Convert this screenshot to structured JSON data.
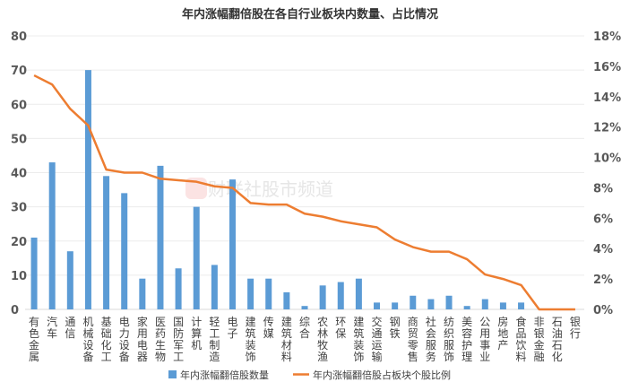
{
  "chart_data": {
    "type": "bar+line",
    "title": "年内涨幅翻倍股在各自行业板块内数量、占比情况",
    "categories": [
      "有色金属",
      "汽车",
      "通信",
      "机械设备",
      "基础化工",
      "电力设备",
      "家用电器",
      "医药生物",
      "国防军工",
      "计算机",
      "轻工制造",
      "电子",
      "建筑装饰",
      "传媒",
      "建筑材料",
      "综合",
      "农林牧渔",
      "环保",
      "建筑装饰",
      "交通运输",
      "钢铁",
      "商贸零售",
      "社会服务",
      "纺织服饰",
      "美容护理",
      "公用事业",
      "房地产",
      "食品饮料",
      "非银金融",
      "石油石化",
      "银行"
    ],
    "series": [
      {
        "name": "年内涨幅翻倍股数量",
        "type": "bar",
        "axis": "left",
        "color": "#5B9BD5",
        "values": [
          21,
          43,
          17,
          70,
          39,
          34,
          9,
          42,
          12,
          30,
          13,
          38,
          9,
          9,
          5,
          1,
          7,
          8,
          9,
          2,
          2,
          4,
          3,
          4,
          1,
          3,
          2,
          2,
          0,
          0,
          0
        ]
      },
      {
        "name": "年内涨幅翻倍股占板块个股比例",
        "type": "line",
        "axis": "right",
        "unit": "%",
        "color": "#ED7D31",
        "values": [
          15.4,
          14.8,
          13.2,
          12.1,
          9.2,
          9.0,
          9.0,
          8.6,
          8.5,
          8.4,
          8.1,
          8.0,
          7.0,
          6.9,
          6.9,
          6.3,
          6.1,
          5.8,
          5.6,
          5.4,
          4.6,
          4.1,
          3.8,
          3.8,
          3.3,
          2.3,
          2.0,
          1.6,
          0,
          0,
          0
        ]
      }
    ],
    "y_left": {
      "range": [
        0,
        80
      ],
      "ticks": [
        "0",
        "10",
        "20",
        "30",
        "40",
        "50",
        "60",
        "70",
        "80"
      ]
    },
    "y_right": {
      "range": [
        0,
        18
      ],
      "ticks": [
        "0%",
        "2%",
        "4%",
        "6%",
        "8%",
        "10%",
        "12%",
        "14%",
        "16%",
        "18%"
      ]
    },
    "grid": true,
    "legend_position": "bottom",
    "watermark": "财联社股市频道"
  }
}
